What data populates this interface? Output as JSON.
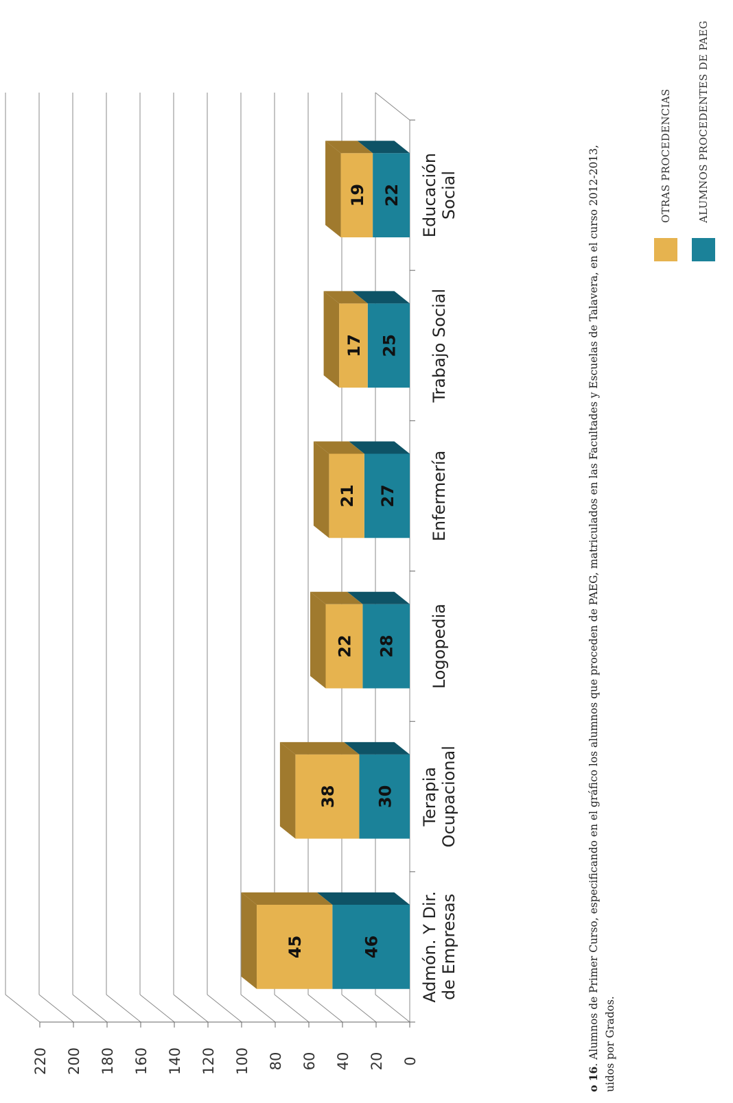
{
  "caption": {
    "line1_bold": "o 16",
    "line1": ". Alumnos de Primer Curso, especificando en el gráfico los alumnos que proceden de PAEG, matriculados en las Facultades y Escuelas de Talavera,  en el curso 2012-2013,",
    "line2": "uidos por Grados."
  },
  "legend": [
    {
      "label": "OTRAS PROCEDENCIAS",
      "color": "#E6B34F"
    },
    {
      "label": "ALUMNOS PROCEDENTES DE PAEG",
      "color": "#1B8299"
    }
  ],
  "chart_data": {
    "type": "bar",
    "stacked": true,
    "three_d": true,
    "orientation": "vertical, page rotated 90° counter-clockwise",
    "categories": [
      [
        "Admón. Y Dir.",
        "de Empresas"
      ],
      [
        "Terapia",
        "Ocupacional"
      ],
      [
        "Logopedia"
      ],
      [
        "Enfermería"
      ],
      [
        "Trabajo Social"
      ],
      [
        "Educación",
        "Social"
      ]
    ],
    "series": [
      {
        "name": "ALUMNOS PROCEDENTES DE PAEG",
        "values": [
          46,
          30,
          28,
          27,
          25,
          22
        ],
        "color": "#1B8299",
        "top_color": "#0E5366"
      },
      {
        "name": "OTRAS PROCEDENCIAS",
        "values": [
          45,
          38,
          22,
          21,
          17,
          19
        ],
        "color": "#E6B34F",
        "top_color": "#A07A2E"
      }
    ],
    "ylim": [
      0,
      220
    ],
    "yticks": [
      0,
      20,
      40,
      60,
      80,
      100,
      120,
      140,
      160,
      180,
      200,
      220
    ],
    "grid": true,
    "legend_position": "bottom-right"
  }
}
